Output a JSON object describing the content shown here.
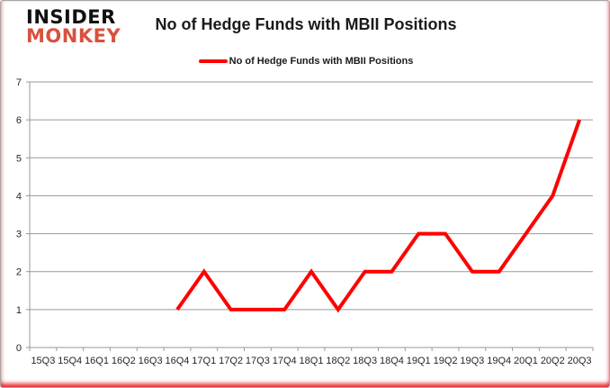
{
  "logo": {
    "line1": "INSIDER",
    "line2": "MONKEY",
    "color1": "#111111",
    "color2": "#d9513d"
  },
  "title": "No of Hedge Funds with MBII Positions",
  "legend": {
    "label": "No of Hedge Funds with MBII Positions",
    "swatch_color": "#ff0000"
  },
  "chart_data": {
    "type": "line",
    "title": "No of Hedge Funds with MBII Positions",
    "categories": [
      "15Q3",
      "15Q4",
      "16Q1",
      "16Q2",
      "16Q3",
      "16Q4",
      "17Q1",
      "17Q2",
      "17Q3",
      "17Q4",
      "18Q1",
      "18Q2",
      "18Q3",
      "18Q4",
      "19Q1",
      "19Q2",
      "19Q3",
      "19Q4",
      "20Q1",
      "20Q2",
      "20Q3"
    ],
    "series": [
      {
        "name": "No of Hedge Funds with MBII Positions",
        "color": "#ff0000",
        "values": [
          null,
          null,
          null,
          null,
          null,
          1,
          2,
          1,
          1,
          1,
          2,
          1,
          2,
          2,
          3,
          3,
          2,
          2,
          3,
          4,
          6
        ]
      }
    ],
    "xlabel": "",
    "ylabel": "",
    "ylim": [
      0,
      7
    ],
    "yticks": [
      0,
      1,
      2,
      3,
      4,
      5,
      6,
      7
    ],
    "grid": true,
    "legend_position": "top",
    "gridline_color": "#999999",
    "axis_color": "#999999",
    "tick_label_color": "#262626"
  }
}
